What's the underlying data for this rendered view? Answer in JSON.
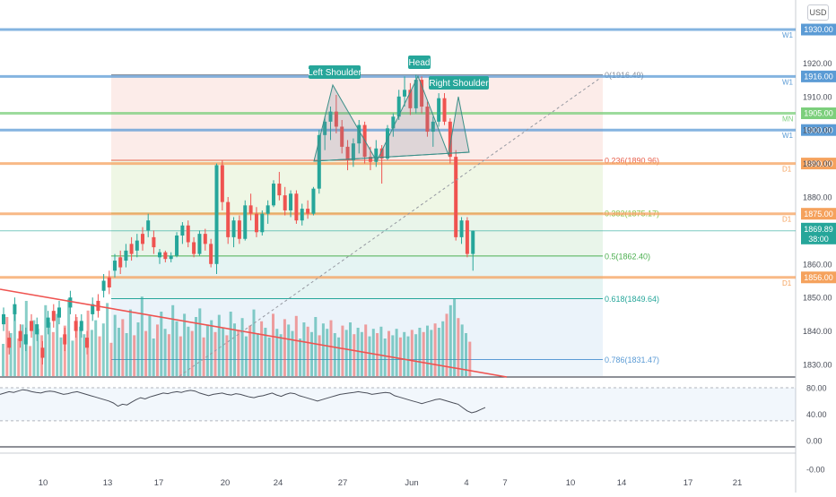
{
  "currency_label": "USD",
  "pattern_labels": {
    "left_shoulder": "Left Shoulder",
    "head": "Head",
    "right_shoulder": "Right Shoulder"
  },
  "chart_data": [
    {
      "type": "candlestick",
      "title": "",
      "xlabel": "",
      "ylabel": "",
      "ylim": [
        1825,
        1935
      ],
      "y_ticks": [
        "1830.00",
        "1840.00",
        "1850.00",
        "1860.00",
        "1870.00",
        "1880.00",
        "1890.00",
        "1900.00",
        "1910.00",
        "1920.00"
      ],
      "x_ticks": [
        "10",
        "13",
        "17",
        "20",
        "24",
        "27",
        "Jun",
        "4",
        "7",
        "10",
        "14",
        "17",
        "21"
      ],
      "candles": [
        [
          1862,
          1864.5,
          1860,
          1863.5
        ],
        [
          1863.5,
          1864,
          1860.5,
          1861.5
        ],
        [
          1861.5,
          1863.5,
          1860.5,
          1862.5
        ],
        [
          1862.5,
          1869.5,
          1862,
          1868.5
        ],
        [
          1868.5,
          1872.5,
          1866,
          1871.5
        ],
        [
          1871.5,
          1873,
          1865,
          1866.5
        ],
        [
          1866.5,
          1868,
          1862,
          1863
        ],
        [
          1863,
          1870,
          1862.5,
          1869
        ],
        [
          1869,
          1870.5,
          1864,
          1866
        ],
        [
          1866,
          1867.5,
          1859,
          1860
        ],
        [
          1860,
          1890,
          1857,
          1889.5
        ],
        [
          1889.5,
          1891,
          1876,
          1878.5
        ],
        [
          1878.5,
          1880,
          1866,
          1868
        ],
        [
          1868,
          1874,
          1865,
          1873
        ],
        [
          1873,
          1874.5,
          1866,
          1867.5
        ],
        [
          1867.5,
          1879,
          1867,
          1877.5
        ],
        [
          1877.5,
          1881,
          1873,
          1875
        ],
        [
          1875,
          1877,
          1868,
          1869.5
        ],
        [
          1869.5,
          1876,
          1868.5,
          1875
        ],
        [
          1875,
          1879,
          1872,
          1877.5
        ],
        [
          1877.5,
          1885,
          1877,
          1884
        ],
        [
          1884,
          1887.5,
          1879,
          1880.5
        ],
        [
          1880.5,
          1883,
          1874.5,
          1876
        ],
        [
          1876,
          1882,
          1874,
          1881
        ],
        [
          1881,
          1882,
          1872,
          1873
        ],
        [
          1873,
          1878,
          1871.5,
          1876.5
        ],
        [
          1876.5,
          1879,
          1873.5,
          1875
        ],
        [
          1875,
          1883,
          1874.5,
          1882.5
        ],
        [
          1882.5,
          1900,
          1881,
          1898.5
        ],
        [
          1898.5,
          1904,
          1894,
          1902.5
        ],
        [
          1902.5,
          1907,
          1897,
          1905.5
        ],
        [
          1905.5,
          1910.5,
          1899,
          1901
        ],
        [
          1901,
          1903,
          1893,
          1895
        ],
        [
          1895,
          1897,
          1888,
          1891
        ],
        [
          1891,
          1897.5,
          1889,
          1896
        ],
        [
          1896,
          1903,
          1893,
          1901.5
        ],
        [
          1901.5,
          1902.5,
          1890,
          1892
        ],
        [
          1892,
          1895,
          1888,
          1890.5
        ],
        [
          1890.5,
          1897,
          1889,
          1894.5
        ],
        [
          1894.5,
          1895.5,
          1884,
          1891.5
        ],
        [
          1891.5,
          1901.5,
          1891,
          1900.5
        ],
        [
          1900.5,
          1905,
          1898,
          1904
        ],
        [
          1904,
          1912,
          1903,
          1910
        ],
        [
          1910,
          1916,
          1907,
          1912
        ],
        [
          1912,
          1914,
          1904.5,
          1906.5
        ],
        [
          1906.5,
          1916.5,
          1905,
          1915
        ],
        [
          1915,
          1916,
          1905,
          1907
        ],
        [
          1907,
          1908.5,
          1898,
          1899.5
        ],
        [
          1899.5,
          1904,
          1895,
          1902.5
        ],
        [
          1902.5,
          1911,
          1901,
          1909.5
        ],
        [
          1909.5,
          1911,
          1901.5,
          1902.5
        ],
        [
          1902.5,
          1903.5,
          1890,
          1892
        ],
        [
          1892,
          1894,
          1867,
          1868
        ],
        [
          1868,
          1874,
          1866,
          1873
        ],
        [
          1873,
          1874,
          1862,
          1863
        ],
        [
          1863,
          1870,
          1858,
          1869.9
        ]
      ],
      "overlays": {
        "horizontal_levels": [
          {
            "price": 1930.0,
            "label": "1930.00",
            "tag": "W1",
            "color": "#5b9bd5"
          },
          {
            "price": 1916.0,
            "label": "1916.00",
            "tag": "W1",
            "color": "#5b9bd5"
          },
          {
            "price": 1905.0,
            "label": "1905.00",
            "tag": "MN",
            "color": "#7ccf7c"
          },
          {
            "price": 1900.0,
            "label": "1900.00",
            "tag": "W1",
            "color": "#5b9bd5"
          },
          {
            "price": 1890.0,
            "label": "1890.00",
            "tag": "D1",
            "color": "#f5a25d"
          },
          {
            "price": 1875.0,
            "label": "1875.00",
            "tag": "D1",
            "color": "#f5a25d"
          },
          {
            "price": 1856.0,
            "label": "1856.00",
            "tag": "D1",
            "color": "#f5a25d"
          }
        ],
        "fibonacci": [
          {
            "ratio": "0",
            "price": 1916.49,
            "label": "0(1916.49)",
            "color": "#8a8f99"
          },
          {
            "ratio": "0.236",
            "price": 1890.96,
            "label": "0.236(1890.96)",
            "color": "#e8604c"
          },
          {
            "ratio": "0.382",
            "price": 1875.17,
            "label": "0.382(1875.17)",
            "color": "#8bc34a"
          },
          {
            "ratio": "0.5",
            "price": 1862.4,
            "label": "0.5(1862.40)",
            "color": "#4caf50"
          },
          {
            "ratio": "0.618",
            "price": 1849.64,
            "label": "0.618(1849.64)",
            "color": "#26a69a"
          },
          {
            "ratio": "0.786",
            "price": 1831.47,
            "label": "0.786(1831.47)",
            "color": "#5b9bd5"
          }
        ],
        "current_price": {
          "price": 1869.89,
          "label": "1869.89",
          "countdown": "38:00",
          "color": "#26a69a"
        }
      }
    },
    {
      "type": "line",
      "title": "",
      "xlabel": "",
      "ylabel": "",
      "ylim": [
        -10,
        100
      ],
      "y_ticks": [
        "80.00",
        "40.00",
        "0.00",
        "-0.00"
      ],
      "band": [
        30,
        80
      ],
      "series": [
        {
          "values": [
            70,
            72,
            74,
            73,
            75,
            77,
            76,
            74,
            73,
            72,
            74,
            75,
            74,
            72,
            70,
            71,
            73,
            74,
            72,
            70,
            68,
            66,
            64,
            62,
            60,
            57,
            52,
            55,
            54,
            58,
            62,
            65,
            63,
            66,
            68,
            70,
            72,
            71,
            73,
            74,
            73,
            75,
            76,
            75,
            72,
            70,
            68,
            70,
            71,
            72,
            70,
            69,
            71,
            70,
            68,
            66,
            65,
            67,
            68,
            70,
            72,
            69,
            67,
            70,
            72,
            71,
            68,
            66,
            64,
            62,
            60,
            62,
            64,
            66,
            68,
            70,
            71,
            72,
            73,
            74,
            73,
            72,
            70,
            71,
            72,
            73,
            72,
            68,
            66,
            64,
            62,
            60,
            58,
            56,
            58,
            60,
            62,
            63,
            61,
            59,
            57,
            55,
            50,
            45,
            42,
            44,
            47,
            50
          ]
        }
      ]
    },
    {
      "type": "bar",
      "title": "",
      "xlabel": "",
      "ylabel": "",
      "series": [
        {
          "values": [
            30,
            55,
            40,
            62,
            35,
            48,
            70,
            28,
            52,
            44,
            38,
            66,
            50,
            41,
            58,
            36,
            47,
            72,
            33,
            55,
            46,
            39,
            61,
            43,
            52,
            37,
            49,
            68,
            31,
            57,
            45,
            53,
            40,
            62,
            38,
            50,
            74,
            42,
            56,
            35,
            48,
            60,
            44,
            39,
            66,
            51,
            37,
            58,
            46,
            42,
            55,
            63,
            36,
            48,
            52,
            41,
            57,
            45,
            38,
            60,
            49,
            43,
            54,
            37,
            47,
            62,
            40,
            51,
            45,
            36,
            58,
            44,
            39,
            53,
            48,
            42,
            56,
            35,
            50,
            46,
            41,
            55,
            38,
            49,
            44,
            52,
            40,
            36,
            47,
            43,
            50,
            39,
            45,
            41,
            48,
            37,
            44,
            40,
            46,
            35,
            42,
            38,
            44,
            36,
            41,
            37,
            43,
            39,
            45,
            41,
            47,
            43,
            49,
            45,
            51,
            58,
            66,
            72,
            54,
            48,
            40,
            32
          ]
        }
      ]
    }
  ]
}
